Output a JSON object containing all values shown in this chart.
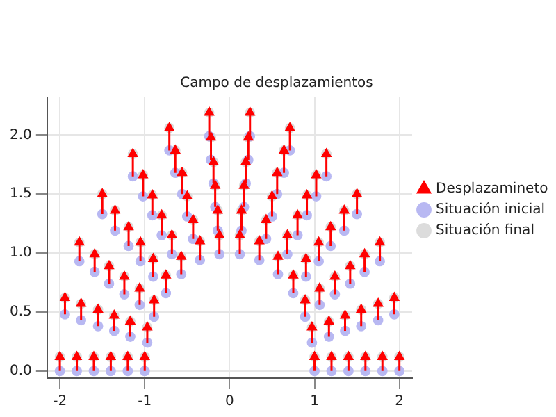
{
  "chart_data": {
    "type": "scatter",
    "title": "Campo de desplazamientos",
    "xlim": [
      -2.15,
      2.15
    ],
    "xticks": [
      -2,
      -1,
      0,
      1,
      2
    ],
    "ylim": [
      -0.06,
      2.32
    ],
    "yticks": [
      {
        "value": 0,
        "label": "0.0"
      },
      {
        "value": 0.5,
        "label": "0.5"
      },
      {
        "value": 1,
        "label": "1.0"
      },
      {
        "value": 1.5,
        "label": "1.5"
      },
      {
        "value": 2,
        "label": "2.0"
      }
    ],
    "grid": true,
    "legend": "right",
    "series": [
      {
        "name": "Situación inicial",
        "marker": "circle",
        "color": "#b8b8f2",
        "x": [
          1,
          0.97,
          0.89,
          0.75,
          0.57,
          0.35,
          0.12,
          -0.12,
          -0.35,
          -0.57,
          -0.75,
          -0.89,
          -0.97,
          -1,
          1.2,
          1.17,
          1.06,
          0.9,
          0.68,
          0.43,
          0.14,
          -0.14,
          -0.43,
          -0.68,
          -0.9,
          -1.06,
          -1.17,
          -1.2,
          1.4,
          1.36,
          1.24,
          1.05,
          0.8,
          0.5,
          0.17,
          -0.17,
          -0.5,
          -0.8,
          -1.05,
          -1.24,
          -1.36,
          -1.4,
          1.6,
          1.55,
          1.42,
          1.19,
          0.91,
          0.56,
          0.19,
          -0.19,
          -0.56,
          -0.91,
          -1.19,
          -1.42,
          -1.55,
          -1.6,
          1.8,
          1.75,
          1.59,
          1.35,
          1.02,
          0.64,
          0.22,
          -0.22,
          -0.64,
          -1.02,
          -1.35,
          -1.59,
          -1.75,
          -1.8,
          2,
          1.94,
          1.77,
          1.5,
          1.14,
          0.71,
          0.24,
          -0.24,
          -0.71,
          -1.14,
          -1.5,
          -1.77,
          -1.94,
          -2
        ],
        "values": [
          0,
          0.24,
          0.46,
          0.66,
          0.82,
          0.94,
          0.99,
          0.99,
          0.94,
          0.82,
          0.66,
          0.46,
          0.24,
          0,
          0,
          0.29,
          0.56,
          0.8,
          0.99,
          1.12,
          1.19,
          1.19,
          1.12,
          0.99,
          0.8,
          0.56,
          0.29,
          0,
          0,
          0.34,
          0.65,
          0.93,
          1.15,
          1.31,
          1.39,
          1.39,
          1.31,
          1.15,
          0.93,
          0.65,
          0.34,
          0,
          0,
          0.38,
          0.74,
          1.06,
          1.32,
          1.5,
          1.59,
          1.59,
          1.5,
          1.32,
          1.06,
          0.74,
          0.38,
          0,
          0,
          0.43,
          0.84,
          1.19,
          1.48,
          1.68,
          1.79,
          1.79,
          1.68,
          1.48,
          1.19,
          0.84,
          0.43,
          0,
          0,
          0.48,
          0.93,
          1.33,
          1.65,
          1.87,
          1.99,
          1.99,
          1.87,
          1.65,
          1.33,
          0.93,
          0.48,
          0
        ]
      },
      {
        "name": "Situación final",
        "marker": "circle",
        "color": "#dcdcdc",
        "x": [
          1,
          0.97,
          0.89,
          0.75,
          0.57,
          0.35,
          0.12,
          -0.12,
          -0.35,
          -0.57,
          -0.75,
          -0.89,
          -0.97,
          -1,
          1.2,
          1.17,
          1.06,
          0.9,
          0.68,
          0.43,
          0.14,
          -0.14,
          -0.43,
          -0.68,
          -0.9,
          -1.06,
          -1.17,
          -1.2,
          1.4,
          1.36,
          1.24,
          1.05,
          0.8,
          0.5,
          0.17,
          -0.17,
          -0.5,
          -0.8,
          -1.05,
          -1.24,
          -1.36,
          -1.4,
          1.6,
          1.55,
          1.42,
          1.19,
          0.91,
          0.56,
          0.19,
          -0.19,
          -0.56,
          -0.91,
          -1.19,
          -1.42,
          -1.55,
          -1.6,
          1.8,
          1.75,
          1.59,
          1.35,
          1.02,
          0.64,
          0.22,
          -0.22,
          -0.64,
          -1.02,
          -1.35,
          -1.59,
          -1.75,
          -1.8,
          2,
          1.94,
          1.77,
          1.5,
          1.14,
          0.71,
          0.24,
          -0.24,
          -0.71,
          -1.14,
          -1.5,
          -1.77,
          -1.94,
          -2
        ],
        "values": [
          0.12,
          0.37,
          0.6,
          0.81,
          0.97,
          1.1,
          1.15,
          1.15,
          1.1,
          0.97,
          0.81,
          0.6,
          0.37,
          0.12,
          0.12,
          0.42,
          0.7,
          0.95,
          1.15,
          1.28,
          1.36,
          1.36,
          1.28,
          1.15,
          0.95,
          0.7,
          0.42,
          0.12,
          0.12,
          0.47,
          0.8,
          1.09,
          1.32,
          1.48,
          1.57,
          1.57,
          1.48,
          1.32,
          1.09,
          0.8,
          0.47,
          0.12,
          0.12,
          0.52,
          0.89,
          1.22,
          1.49,
          1.68,
          1.77,
          1.77,
          1.68,
          1.49,
          1.22,
          0.89,
          0.52,
          0.12,
          0.12,
          0.57,
          0.99,
          1.36,
          1.66,
          1.87,
          1.98,
          1.98,
          1.87,
          1.66,
          1.36,
          0.99,
          0.57,
          0.12,
          0.12,
          0.62,
          1.09,
          1.5,
          1.84,
          2.06,
          2.19,
          2.19,
          2.06,
          1.84,
          1.5,
          1.09,
          0.62,
          0.12
        ]
      },
      {
        "name": "Desplazamineto",
        "type": "line",
        "marker": "triangle",
        "line_style": "solid",
        "color": "#ff0000",
        "x": [
          1,
          1,
          null,
          0.97,
          0.97,
          null,
          0.89,
          0.89,
          null,
          0.75,
          0.75,
          null,
          0.57,
          0.57,
          null,
          0.35,
          0.35,
          null,
          0.12,
          0.12,
          null,
          -0.12,
          -0.12,
          null,
          -0.35,
          -0.35,
          null,
          -0.57,
          -0.57,
          null,
          -0.75,
          -0.75,
          null,
          -0.89,
          -0.89,
          null,
          -0.97,
          -0.97,
          null,
          -1,
          -1,
          null,
          1.2,
          1.2,
          null,
          1.17,
          1.17,
          null,
          1.06,
          1.06,
          null,
          0.9,
          0.9,
          null,
          0.68,
          0.68,
          null,
          0.43,
          0.43,
          null,
          0.14,
          0.14,
          null,
          -0.14,
          -0.14,
          null,
          -0.43,
          -0.43,
          null,
          -0.68,
          -0.68,
          null,
          -0.9,
          -0.9,
          null,
          -1.06,
          -1.06,
          null,
          -1.17,
          -1.17,
          null,
          -1.2,
          -1.2,
          null,
          1.4,
          1.4,
          null,
          1.36,
          1.36,
          null,
          1.24,
          1.24,
          null,
          1.05,
          1.05,
          null,
          0.8,
          0.8,
          null,
          0.5,
          0.5,
          null,
          0.17,
          0.17,
          null,
          -0.17,
          -0.17,
          null,
          -0.5,
          -0.5,
          null,
          -0.8,
          -0.8,
          null,
          -1.05,
          -1.05,
          null,
          -1.24,
          -1.24,
          null,
          -1.36,
          -1.36,
          null,
          -1.4,
          -1.4,
          null,
          1.6,
          1.6,
          null,
          1.55,
          1.55,
          null,
          1.42,
          1.42,
          null,
          1.19,
          1.19,
          null,
          0.91,
          0.91,
          null,
          0.56,
          0.56,
          null,
          0.19,
          0.19,
          null,
          -0.19,
          -0.19,
          null,
          -0.56,
          -0.56,
          null,
          -0.91,
          -0.91,
          null,
          -1.19,
          -1.19,
          null,
          -1.42,
          -1.42,
          null,
          -1.55,
          -1.55,
          null,
          -1.6,
          -1.6,
          null,
          1.8,
          1.8,
          null,
          1.75,
          1.75,
          null,
          1.59,
          1.59,
          null,
          1.35,
          1.35,
          null,
          1.02,
          1.02,
          null,
          0.64,
          0.64,
          null,
          0.22,
          0.22,
          null,
          -0.22,
          -0.22,
          null,
          -0.64,
          -0.64,
          null,
          -1.02,
          -1.02,
          null,
          -1.35,
          -1.35,
          null,
          -1.59,
          -1.59,
          null,
          -1.75,
          -1.75,
          null,
          -1.8,
          -1.8,
          null,
          2,
          2,
          null,
          1.94,
          1.94,
          null,
          1.77,
          1.77,
          null,
          1.5,
          1.5,
          null,
          1.14,
          1.14,
          null,
          0.71,
          0.71,
          null,
          0.24,
          0.24,
          null,
          -0.24,
          -0.24,
          null,
          -0.71,
          -0.71,
          null,
          -1.14,
          -1.14,
          null,
          -1.5,
          -1.5,
          null,
          -1.77,
          -1.77,
          null,
          -1.94,
          -1.94,
          null,
          -2,
          -2,
          null
        ],
        "values": [
          0,
          0.12,
          null,
          0.24,
          0.37,
          null,
          0.46,
          0.6,
          null,
          0.66,
          0.81,
          null,
          0.82,
          0.97,
          null,
          0.94,
          1.1,
          null,
          0.99,
          1.15,
          null,
          0.99,
          1.15,
          null,
          0.94,
          1.1,
          null,
          0.82,
          0.97,
          null,
          0.66,
          0.81,
          null,
          0.46,
          0.6,
          null,
          0.24,
          0.37,
          null,
          0,
          0.12,
          null,
          0,
          0.12,
          null,
          0.29,
          0.42,
          null,
          0.56,
          0.7,
          null,
          0.8,
          0.95,
          null,
          0.99,
          1.15,
          null,
          1.12,
          1.28,
          null,
          1.19,
          1.36,
          null,
          1.19,
          1.36,
          null,
          1.12,
          1.28,
          null,
          0.99,
          1.15,
          null,
          0.8,
          0.95,
          null,
          0.56,
          0.7,
          null,
          0.29,
          0.42,
          null,
          0,
          0.12,
          null,
          0,
          0.12,
          null,
          0.34,
          0.47,
          null,
          0.65,
          0.8,
          null,
          0.93,
          1.09,
          null,
          1.15,
          1.32,
          null,
          1.31,
          1.48,
          null,
          1.39,
          1.57,
          null,
          1.39,
          1.57,
          null,
          1.31,
          1.48,
          null,
          1.15,
          1.32,
          null,
          0.93,
          1.09,
          null,
          0.65,
          0.8,
          null,
          0.34,
          0.47,
          null,
          0,
          0.12,
          null,
          0,
          0.12,
          null,
          0.38,
          0.52,
          null,
          0.74,
          0.89,
          null,
          1.06,
          1.22,
          null,
          1.32,
          1.49,
          null,
          1.5,
          1.68,
          null,
          1.59,
          1.77,
          null,
          1.59,
          1.77,
          null,
          1.5,
          1.68,
          null,
          1.32,
          1.49,
          null,
          1.06,
          1.22,
          null,
          0.74,
          0.89,
          null,
          0.38,
          0.52,
          null,
          0,
          0.12,
          null,
          0,
          0.12,
          null,
          0.43,
          0.57,
          null,
          0.84,
          0.99,
          null,
          1.19,
          1.36,
          null,
          1.48,
          1.66,
          null,
          1.68,
          1.87,
          null,
          1.79,
          1.98,
          null,
          1.79,
          1.98,
          null,
          1.68,
          1.87,
          null,
          1.48,
          1.66,
          null,
          1.19,
          1.36,
          null,
          0.84,
          0.99,
          null,
          0.43,
          0.57,
          null,
          0,
          0.12,
          null,
          0,
          0.12,
          null,
          0.48,
          0.62,
          null,
          0.93,
          1.09,
          null,
          1.33,
          1.5,
          null,
          1.65,
          1.84,
          null,
          1.87,
          2.06,
          null,
          1.99,
          2.19,
          null,
          1.99,
          2.19,
          null,
          1.87,
          2.06,
          null,
          1.65,
          1.84,
          null,
          1.33,
          1.5,
          null,
          0.93,
          1.09,
          null,
          0.48,
          0.62,
          null,
          0,
          0.12,
          null
        ]
      }
    ]
  }
}
